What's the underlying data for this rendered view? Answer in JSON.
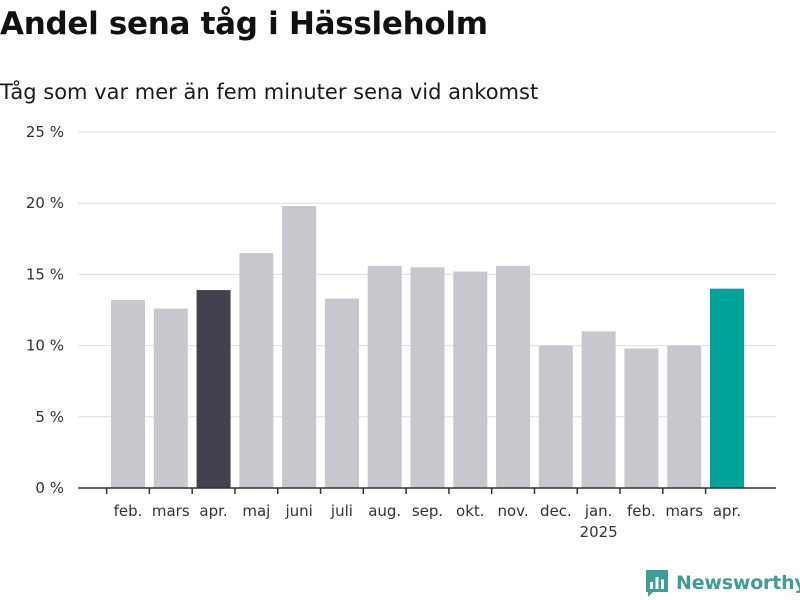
{
  "header": {
    "title": "Andel sena tåg i Hässleholm",
    "subtitle": "Tåg som var mer än fem minuter sena vid ankomst"
  },
  "brand": {
    "name": "Newsworthy",
    "color": "#3f9c97"
  },
  "colors": {
    "default": "#c8c7cd",
    "highlight_prev": "#42414f",
    "highlight_current": "#00a39a",
    "grid": "#dddddd",
    "axis": "#333333"
  },
  "chart_data": {
    "type": "bar",
    "title": "Andel sena tåg i Hässleholm",
    "subtitle": "Tåg som var mer än fem minuter sena vid ankomst",
    "categories": [
      "feb.",
      "mars",
      "apr.",
      "maj",
      "juni",
      "juli",
      "aug.",
      "sep.",
      "okt.",
      "nov.",
      "dec.",
      "jan.",
      "feb.",
      "mars",
      "apr."
    ],
    "values": [
      13.2,
      12.6,
      13.9,
      16.5,
      19.8,
      13.3,
      15.6,
      15.5,
      15.2,
      15.6,
      10.0,
      11.0,
      9.8,
      10.0,
      14.0
    ],
    "highlight": [
      "default",
      "default",
      "highlight_prev",
      "default",
      "default",
      "default",
      "default",
      "default",
      "default",
      "default",
      "default",
      "default",
      "default",
      "default",
      "highlight_current"
    ],
    "year_label": "2025",
    "year_label_index": 11,
    "ylim": [
      0,
      25
    ],
    "yticks": [
      0,
      5,
      10,
      15,
      20,
      25
    ],
    "ytick_labels": [
      "0 %",
      "5 %",
      "10 %",
      "15 %",
      "20 %",
      "25 %"
    ],
    "xlabel": "",
    "ylabel": "",
    "grid": true,
    "legend": "none"
  }
}
